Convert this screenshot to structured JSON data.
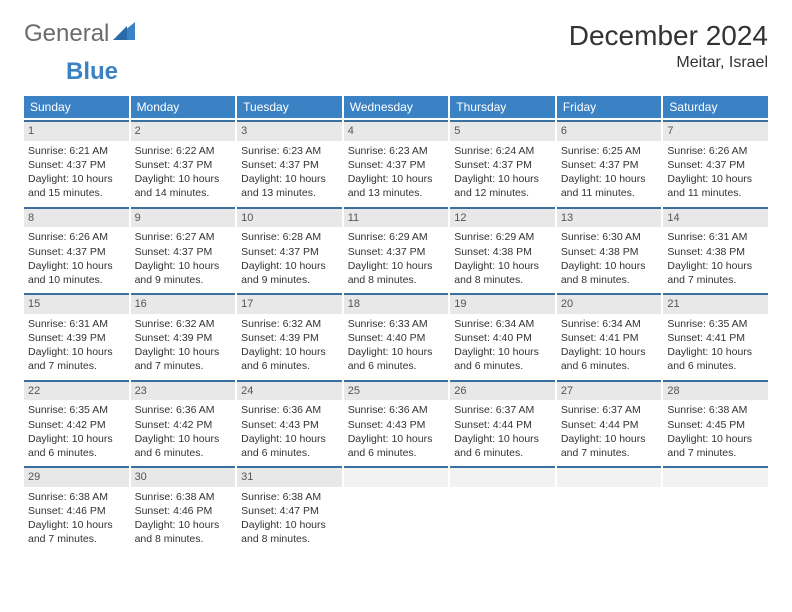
{
  "brand": {
    "word1": "General",
    "word2": "Blue"
  },
  "header": {
    "month": "December 2024",
    "location": "Meitar, Israel"
  },
  "colors": {
    "accent": "#3b82c4",
    "row_divider": "#3b6fa0",
    "datebar_bg": "#e8e8e8",
    "text": "#333333",
    "logo_gray": "#6b6b6b"
  },
  "dayNames": [
    "Sunday",
    "Monday",
    "Tuesday",
    "Wednesday",
    "Thursday",
    "Friday",
    "Saturday"
  ],
  "weeks": [
    [
      {
        "date": "1",
        "sunrise": "Sunrise: 6:21 AM",
        "sunset": "Sunset: 4:37 PM",
        "daylight": "Daylight: 10 hours and 15 minutes."
      },
      {
        "date": "2",
        "sunrise": "Sunrise: 6:22 AM",
        "sunset": "Sunset: 4:37 PM",
        "daylight": "Daylight: 10 hours and 14 minutes."
      },
      {
        "date": "3",
        "sunrise": "Sunrise: 6:23 AM",
        "sunset": "Sunset: 4:37 PM",
        "daylight": "Daylight: 10 hours and 13 minutes."
      },
      {
        "date": "4",
        "sunrise": "Sunrise: 6:23 AM",
        "sunset": "Sunset: 4:37 PM",
        "daylight": "Daylight: 10 hours and 13 minutes."
      },
      {
        "date": "5",
        "sunrise": "Sunrise: 6:24 AM",
        "sunset": "Sunset: 4:37 PM",
        "daylight": "Daylight: 10 hours and 12 minutes."
      },
      {
        "date": "6",
        "sunrise": "Sunrise: 6:25 AM",
        "sunset": "Sunset: 4:37 PM",
        "daylight": "Daylight: 10 hours and 11 minutes."
      },
      {
        "date": "7",
        "sunrise": "Sunrise: 6:26 AM",
        "sunset": "Sunset: 4:37 PM",
        "daylight": "Daylight: 10 hours and 11 minutes."
      }
    ],
    [
      {
        "date": "8",
        "sunrise": "Sunrise: 6:26 AM",
        "sunset": "Sunset: 4:37 PM",
        "daylight": "Daylight: 10 hours and 10 minutes."
      },
      {
        "date": "9",
        "sunrise": "Sunrise: 6:27 AM",
        "sunset": "Sunset: 4:37 PM",
        "daylight": "Daylight: 10 hours and 9 minutes."
      },
      {
        "date": "10",
        "sunrise": "Sunrise: 6:28 AM",
        "sunset": "Sunset: 4:37 PM",
        "daylight": "Daylight: 10 hours and 9 minutes."
      },
      {
        "date": "11",
        "sunrise": "Sunrise: 6:29 AM",
        "sunset": "Sunset: 4:37 PM",
        "daylight": "Daylight: 10 hours and 8 minutes."
      },
      {
        "date": "12",
        "sunrise": "Sunrise: 6:29 AM",
        "sunset": "Sunset: 4:38 PM",
        "daylight": "Daylight: 10 hours and 8 minutes."
      },
      {
        "date": "13",
        "sunrise": "Sunrise: 6:30 AM",
        "sunset": "Sunset: 4:38 PM",
        "daylight": "Daylight: 10 hours and 8 minutes."
      },
      {
        "date": "14",
        "sunrise": "Sunrise: 6:31 AM",
        "sunset": "Sunset: 4:38 PM",
        "daylight": "Daylight: 10 hours and 7 minutes."
      }
    ],
    [
      {
        "date": "15",
        "sunrise": "Sunrise: 6:31 AM",
        "sunset": "Sunset: 4:39 PM",
        "daylight": "Daylight: 10 hours and 7 minutes."
      },
      {
        "date": "16",
        "sunrise": "Sunrise: 6:32 AM",
        "sunset": "Sunset: 4:39 PM",
        "daylight": "Daylight: 10 hours and 7 minutes."
      },
      {
        "date": "17",
        "sunrise": "Sunrise: 6:32 AM",
        "sunset": "Sunset: 4:39 PM",
        "daylight": "Daylight: 10 hours and 6 minutes."
      },
      {
        "date": "18",
        "sunrise": "Sunrise: 6:33 AM",
        "sunset": "Sunset: 4:40 PM",
        "daylight": "Daylight: 10 hours and 6 minutes."
      },
      {
        "date": "19",
        "sunrise": "Sunrise: 6:34 AM",
        "sunset": "Sunset: 4:40 PM",
        "daylight": "Daylight: 10 hours and 6 minutes."
      },
      {
        "date": "20",
        "sunrise": "Sunrise: 6:34 AM",
        "sunset": "Sunset: 4:41 PM",
        "daylight": "Daylight: 10 hours and 6 minutes."
      },
      {
        "date": "21",
        "sunrise": "Sunrise: 6:35 AM",
        "sunset": "Sunset: 4:41 PM",
        "daylight": "Daylight: 10 hours and 6 minutes."
      }
    ],
    [
      {
        "date": "22",
        "sunrise": "Sunrise: 6:35 AM",
        "sunset": "Sunset: 4:42 PM",
        "daylight": "Daylight: 10 hours and 6 minutes."
      },
      {
        "date": "23",
        "sunrise": "Sunrise: 6:36 AM",
        "sunset": "Sunset: 4:42 PM",
        "daylight": "Daylight: 10 hours and 6 minutes."
      },
      {
        "date": "24",
        "sunrise": "Sunrise: 6:36 AM",
        "sunset": "Sunset: 4:43 PM",
        "daylight": "Daylight: 10 hours and 6 minutes."
      },
      {
        "date": "25",
        "sunrise": "Sunrise: 6:36 AM",
        "sunset": "Sunset: 4:43 PM",
        "daylight": "Daylight: 10 hours and 6 minutes."
      },
      {
        "date": "26",
        "sunrise": "Sunrise: 6:37 AM",
        "sunset": "Sunset: 4:44 PM",
        "daylight": "Daylight: 10 hours and 6 minutes."
      },
      {
        "date": "27",
        "sunrise": "Sunrise: 6:37 AM",
        "sunset": "Sunset: 4:44 PM",
        "daylight": "Daylight: 10 hours and 7 minutes."
      },
      {
        "date": "28",
        "sunrise": "Sunrise: 6:38 AM",
        "sunset": "Sunset: 4:45 PM",
        "daylight": "Daylight: 10 hours and 7 minutes."
      }
    ],
    [
      {
        "date": "29",
        "sunrise": "Sunrise: 6:38 AM",
        "sunset": "Sunset: 4:46 PM",
        "daylight": "Daylight: 10 hours and 7 minutes."
      },
      {
        "date": "30",
        "sunrise": "Sunrise: 6:38 AM",
        "sunset": "Sunset: 4:46 PM",
        "daylight": "Daylight: 10 hours and 8 minutes."
      },
      {
        "date": "31",
        "sunrise": "Sunrise: 6:38 AM",
        "sunset": "Sunset: 4:47 PM",
        "daylight": "Daylight: 10 hours and 8 minutes."
      },
      {
        "empty": true
      },
      {
        "empty": true
      },
      {
        "empty": true
      },
      {
        "empty": true
      }
    ]
  ]
}
